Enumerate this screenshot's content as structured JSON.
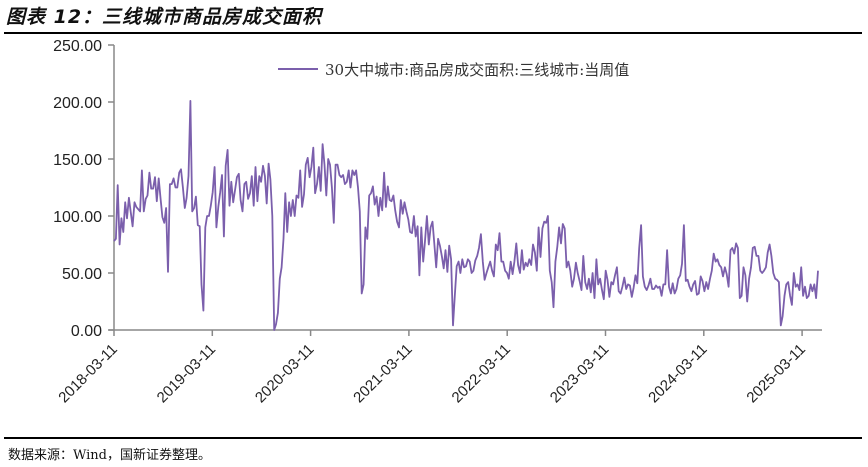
{
  "header": {
    "title": "图表 12：三线城市商品房成交面积"
  },
  "footer": {
    "source": "数据来源：Wind，国新证券整理。"
  },
  "colors": {
    "series": "#7b5fac",
    "axis": "#888888"
  },
  "chart_data": {
    "type": "line",
    "title": "三线城市商品房成交面积",
    "xlabel": "",
    "ylabel": "",
    "ylim": [
      0,
      250
    ],
    "yticks": [
      "0.00",
      "50.00",
      "100.00",
      "150.00",
      "200.00",
      "250.00"
    ],
    "xticks": [
      "2018-03-11",
      "2019-03-11",
      "2020-03-11",
      "2021-03-11",
      "2022-03-11",
      "2023-03-11",
      "2024-03-11",
      "2025-03-11"
    ],
    "legend": {
      "position": "top-right",
      "entries": [
        "30大中城市:商品房成交面积:三线城市:当周值"
      ]
    },
    "grid": false,
    "series": [
      {
        "name": "30大中城市:商品房成交面积:三线城市:当周值",
        "x_start": "2018-03-11",
        "frequency": "weekly(approx, sampled)",
        "values": [
          78,
          80,
          127,
          75,
          98,
          86,
          112,
          98,
          116,
          103,
          91,
          112,
          108,
          106,
          104,
          140,
          104,
          115,
          118,
          138,
          124,
          124,
          134,
          113,
          133,
          115,
          99,
          94,
          107,
          51,
          128,
          128,
          133,
          125,
          125,
          138,
          141,
          125,
          107,
          116,
          135,
          201,
          104,
          107,
          117,
          92,
          91,
          40,
          17,
          90,
          100,
          100,
          109,
          121,
          143,
          90,
          108,
          121,
          136,
          82,
          144,
          158,
          109,
          130,
          112,
          123,
          134,
          137,
          114,
          104,
          128,
          130,
          115,
          120,
          135,
          109,
          143,
          113,
          135,
          130,
          144,
          135,
          111,
          146,
          132,
          100,
          0,
          5,
          15,
          45,
          55,
          80,
          120,
          86,
          112,
          100,
          114,
          100,
          118,
          116,
          140,
          108,
          119,
          145,
          151,
          134,
          143,
          160,
          120,
          128,
          143,
          122,
          163,
          145,
          118,
          150,
          145,
          125,
          94,
          145,
          145,
          136,
          134,
          136,
          128,
          130,
          140,
          125,
          140,
          136,
          140,
          125,
          104,
          32,
          40,
          90,
          80,
          118,
          120,
          126,
          110,
          117,
          100,
          116,
          105,
          138,
          108,
          126,
          114,
          113,
          118,
          105,
          95,
          90,
          114,
          102,
          112,
          104,
          97,
          86,
          85,
          100,
          82,
          91,
          48,
          90,
          60,
          78,
          100,
          75,
          90,
          95,
          76,
          55,
          80,
          74,
          65,
          54,
          70,
          51,
          74,
          62,
          4,
          30,
          56,
          60,
          50,
          62,
          55,
          56,
          62,
          60,
          50,
          52,
          61,
          65,
          72,
          84,
          60,
          44,
          50,
          55,
          60,
          52,
          47,
          75,
          70,
          85,
          60,
          60,
          52,
          50,
          45,
          60,
          49,
          60,
          76,
          57,
          50,
          70,
          53,
          59,
          56,
          62,
          57,
          75,
          68,
          52,
          90,
          64,
          89,
          95,
          94,
          100,
          52,
          42,
          20,
          60,
          73,
          90,
          76,
          93,
          89,
          55,
          60,
          52,
          38,
          45,
          59,
          50,
          43,
          35,
          65,
          42,
          36,
          45,
          33,
          50,
          28,
          62,
          40,
          45,
          35,
          27,
          52,
          44,
          29,
          42,
          40,
          48,
          55,
          34,
          32,
          38,
          46,
          36,
          40,
          39,
          29,
          37,
          48,
          41,
          72,
          92,
          47,
          38,
          35,
          39,
          45,
          36,
          36,
          39,
          37,
          38,
          30,
          40,
          40,
          70,
          38,
          32,
          41,
          32,
          36,
          45,
          48,
          58,
          92,
          43,
          44,
          38,
          34,
          40,
          43,
          31,
          32,
          47,
          43,
          34,
          42,
          36,
          45,
          52,
          67,
          60,
          62,
          57,
          55,
          47,
          55,
          49,
          38,
          70,
          72,
          67,
          76,
          72,
          28,
          30,
          55,
          48,
          25,
          45,
          55,
          72,
          73,
          65,
          65,
          52,
          50,
          52,
          55,
          68,
          75,
          65,
          50,
          45,
          44,
          42,
          4,
          12,
          30,
          40,
          42,
          30,
          22,
          50,
          38,
          40,
          35,
          55,
          30,
          38,
          28,
          30,
          40,
          34,
          40,
          28,
          52
        ]
      }
    ]
  }
}
